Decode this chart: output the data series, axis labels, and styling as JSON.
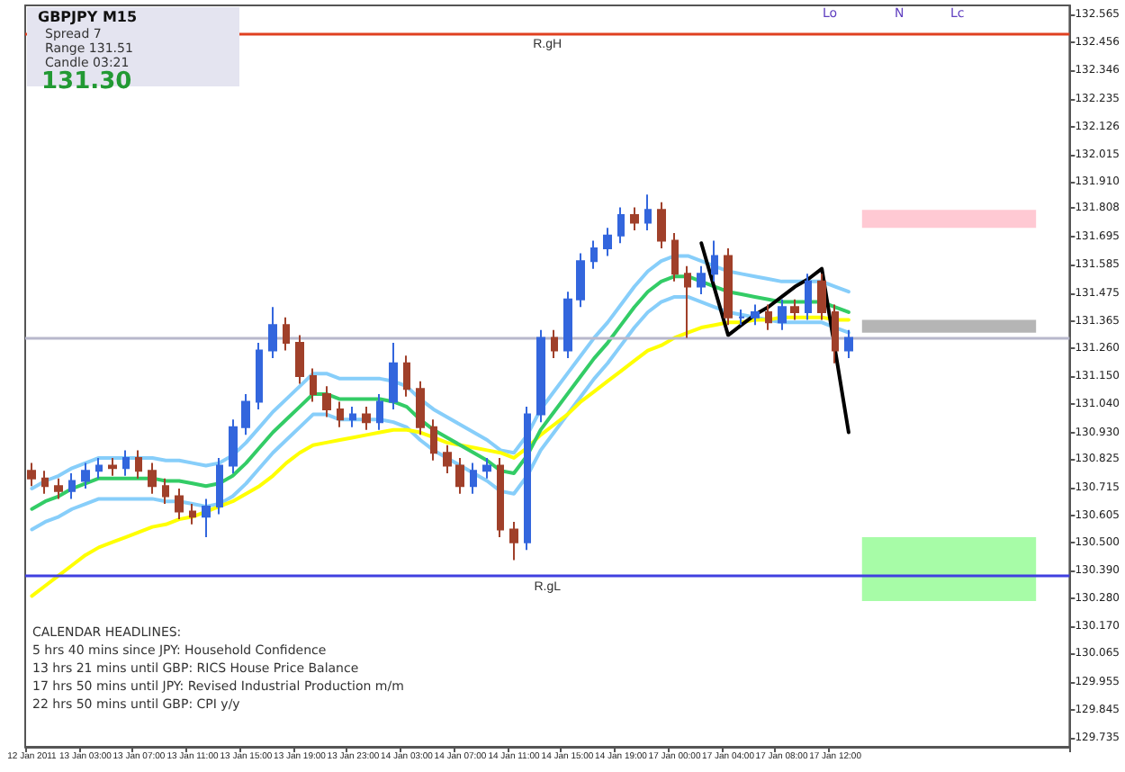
{
  "chart_data": {
    "type": "candlestick",
    "title": "GBPJPY  M15",
    "categories": [
      "12 Jan 2011",
      null,
      null,
      null,
      "13 Jan 03:00",
      null,
      null,
      null,
      "13 Jan 07:00",
      null,
      null,
      null,
      "13 Jan 11:00",
      null,
      null,
      null,
      "13 Jan 15:00",
      null,
      null,
      null,
      "13 Jan 19:00",
      null,
      null,
      null,
      "13 Jan 23:00",
      null,
      null,
      null,
      "14 Jan 03:00",
      null,
      null,
      null,
      "14 Jan 07:00",
      null,
      null,
      null,
      "14 Jan 11:00",
      null,
      null,
      null,
      "14 Jan 15:00",
      null,
      null,
      null,
      "14 Jan 19:00",
      null,
      null,
      null,
      "17 Jan 00:00",
      null,
      null,
      null,
      "17 Jan 04:00",
      null,
      null,
      null,
      "17 Jan 08:00",
      null,
      null,
      null,
      "17 Jan 12:00",
      null,
      null,
      null,
      null,
      null,
      null,
      null,
      null,
      null,
      null,
      null,
      null,
      null,
      null,
      null,
      null,
      null
    ],
    "ohlc": [
      [
        130.78,
        130.81,
        130.72,
        130.75
      ],
      [
        130.75,
        130.78,
        130.69,
        130.72
      ],
      [
        130.72,
        130.75,
        130.67,
        130.7
      ],
      [
        130.7,
        130.77,
        130.67,
        130.74
      ],
      [
        130.74,
        130.81,
        130.71,
        130.78
      ],
      [
        130.78,
        130.83,
        130.75,
        130.8
      ],
      [
        130.8,
        130.83,
        130.76,
        130.79
      ],
      [
        130.79,
        130.86,
        130.76,
        130.83
      ],
      [
        130.83,
        130.86,
        130.75,
        130.78
      ],
      [
        130.78,
        130.81,
        130.69,
        130.72
      ],
      [
        130.72,
        130.75,
        130.65,
        130.68
      ],
      [
        130.68,
        130.71,
        130.59,
        130.62
      ],
      [
        130.62,
        130.65,
        130.57,
        130.6
      ],
      [
        130.6,
        130.67,
        130.52,
        130.64
      ],
      [
        130.64,
        130.83,
        130.61,
        130.8
      ],
      [
        130.8,
        130.98,
        130.77,
        130.95
      ],
      [
        130.95,
        131.08,
        130.92,
        131.05
      ],
      [
        131.05,
        131.28,
        131.02,
        131.25
      ],
      [
        131.25,
        131.42,
        131.22,
        131.35
      ],
      [
        131.35,
        131.38,
        131.25,
        131.28
      ],
      [
        131.28,
        131.31,
        131.12,
        131.15
      ],
      [
        131.15,
        131.18,
        131.05,
        131.08
      ],
      [
        131.08,
        131.11,
        130.99,
        131.02
      ],
      [
        131.02,
        131.05,
        130.95,
        130.98
      ],
      [
        130.98,
        131.03,
        130.95,
        131.0
      ],
      [
        131.0,
        131.03,
        130.94,
        130.97
      ],
      [
        130.97,
        131.08,
        130.94,
        131.05
      ],
      [
        131.05,
        131.28,
        131.02,
        131.2
      ],
      [
        131.2,
        131.23,
        131.07,
        131.1
      ],
      [
        131.1,
        131.13,
        130.92,
        130.95
      ],
      [
        130.95,
        130.98,
        130.82,
        130.85
      ],
      [
        130.85,
        130.88,
        130.77,
        130.8
      ],
      [
        130.8,
        130.83,
        130.69,
        130.72
      ],
      [
        130.72,
        130.81,
        130.69,
        130.78
      ],
      [
        130.78,
        130.83,
        130.75,
        130.8
      ],
      [
        130.8,
        130.83,
        130.52,
        130.55
      ],
      [
        130.55,
        130.58,
        130.43,
        130.5
      ],
      [
        130.5,
        131.03,
        130.47,
        131.0
      ],
      [
        131.0,
        131.33,
        130.97,
        131.3
      ],
      [
        131.3,
        131.33,
        131.22,
        131.25
      ],
      [
        131.25,
        131.48,
        131.22,
        131.45
      ],
      [
        131.45,
        131.63,
        131.42,
        131.6
      ],
      [
        131.6,
        131.68,
        131.57,
        131.65
      ],
      [
        131.65,
        131.73,
        131.62,
        131.7
      ],
      [
        131.7,
        131.81,
        131.67,
        131.78
      ],
      [
        131.78,
        131.81,
        131.72,
        131.75
      ],
      [
        131.75,
        131.86,
        131.72,
        131.8
      ],
      [
        131.8,
        131.83,
        131.65,
        131.68
      ],
      [
        131.68,
        131.71,
        131.52,
        131.55
      ],
      [
        131.55,
        131.58,
        131.3,
        131.5
      ],
      [
        131.5,
        131.58,
        131.47,
        131.55
      ],
      [
        131.55,
        131.68,
        131.52,
        131.62
      ],
      [
        131.62,
        131.65,
        131.35,
        131.38
      ],
      [
        131.38,
        131.41,
        131.35,
        131.38
      ],
      [
        131.38,
        131.43,
        131.35,
        131.4
      ],
      [
        131.4,
        131.43,
        131.33,
        131.36
      ],
      [
        131.36,
        131.45,
        131.33,
        131.42
      ],
      [
        131.42,
        131.45,
        131.37,
        131.4
      ],
      [
        131.4,
        131.55,
        131.37,
        131.52
      ],
      [
        131.52,
        131.55,
        131.37,
        131.4
      ],
      [
        131.4,
        131.43,
        131.2,
        131.25
      ],
      [
        131.25,
        131.33,
        131.22,
        131.3
      ],
      null,
      null,
      null,
      null,
      null,
      null,
      null,
      null,
      null,
      null,
      null,
      null,
      null,
      null,
      null,
      null
    ],
    "series": [
      {
        "type": "line",
        "color": "#87cefa",
        "values": [
          130.71,
          130.74,
          130.76,
          130.79,
          130.81,
          130.83,
          130.83,
          130.83,
          130.83,
          130.83,
          130.82,
          130.82,
          130.81,
          130.8,
          130.81,
          130.84,
          130.89,
          130.95,
          131.01,
          131.06,
          131.11,
          131.16,
          131.16,
          131.14,
          131.14,
          131.14,
          131.14,
          131.13,
          131.11,
          131.06,
          131.02,
          130.99,
          130.96,
          130.93,
          130.9,
          130.86,
          130.85,
          130.92,
          131.02,
          131.09,
          131.16,
          131.23,
          131.3,
          131.36,
          131.43,
          131.5,
          131.56,
          131.6,
          131.62,
          131.62,
          131.6,
          131.58,
          131.56,
          131.55,
          131.54,
          131.53,
          131.52,
          131.52,
          131.52,
          131.52,
          131.5,
          131.48,
          null,
          null,
          null,
          null,
          null,
          null,
          null,
          null,
          null,
          null,
          null,
          null,
          null,
          null,
          null,
          null
        ]
      },
      {
        "type": "line",
        "color": "#87cefa",
        "values": [
          130.55,
          130.58,
          130.6,
          130.63,
          130.65,
          130.67,
          130.67,
          130.67,
          130.67,
          130.67,
          130.66,
          130.66,
          130.65,
          130.64,
          130.65,
          130.68,
          130.73,
          130.79,
          130.85,
          130.9,
          130.95,
          131.0,
          131.0,
          130.98,
          130.98,
          130.98,
          130.98,
          130.97,
          130.95,
          130.9,
          130.86,
          130.83,
          130.8,
          130.77,
          130.74,
          130.7,
          130.69,
          130.76,
          130.86,
          130.93,
          131.0,
          131.07,
          131.14,
          131.2,
          131.27,
          131.34,
          131.4,
          131.44,
          131.46,
          131.46,
          131.44,
          131.42,
          131.4,
          131.39,
          131.38,
          131.37,
          131.36,
          131.36,
          131.36,
          131.36,
          131.34,
          131.32,
          null,
          null,
          null,
          null,
          null,
          null,
          null,
          null,
          null,
          null,
          null,
          null,
          null,
          null,
          null,
          null
        ]
      },
      {
        "type": "line",
        "color": "#ffff00",
        "values": [
          130.29,
          130.33,
          130.37,
          130.41,
          130.45,
          130.48,
          130.5,
          130.52,
          130.54,
          130.56,
          130.57,
          130.59,
          130.6,
          130.62,
          130.64,
          130.66,
          130.69,
          130.72,
          130.76,
          130.81,
          130.85,
          130.88,
          130.89,
          130.9,
          130.91,
          130.92,
          130.93,
          130.94,
          130.94,
          130.93,
          130.91,
          130.89,
          130.88,
          130.87,
          130.86,
          130.85,
          130.83,
          130.87,
          130.92,
          130.96,
          131.0,
          131.05,
          131.09,
          131.13,
          131.17,
          131.21,
          131.25,
          131.27,
          131.3,
          131.32,
          131.34,
          131.35,
          131.36,
          131.36,
          131.37,
          131.37,
          131.38,
          131.38,
          131.38,
          131.38,
          131.37,
          131.37,
          null,
          null,
          null,
          null,
          null,
          null,
          null,
          null,
          null,
          null,
          null,
          null,
          null,
          null,
          null,
          null
        ]
      },
      {
        "type": "line",
        "color": "#33cc66",
        "values": [
          130.63,
          130.66,
          130.68,
          130.71,
          130.73,
          130.75,
          130.75,
          130.75,
          130.75,
          130.75,
          130.74,
          130.74,
          130.73,
          130.72,
          130.73,
          130.76,
          130.81,
          130.87,
          130.93,
          130.98,
          131.03,
          131.08,
          131.08,
          131.06,
          131.06,
          131.06,
          131.06,
          131.05,
          131.03,
          130.98,
          130.94,
          130.91,
          130.88,
          130.85,
          130.82,
          130.78,
          130.77,
          130.84,
          130.94,
          131.01,
          131.08,
          131.15,
          131.22,
          131.28,
          131.35,
          131.42,
          131.48,
          131.52,
          131.54,
          131.54,
          131.52,
          131.5,
          131.48,
          131.47,
          131.46,
          131.45,
          131.44,
          131.44,
          131.44,
          131.44,
          131.42,
          131.4,
          null,
          null,
          null,
          null,
          null,
          null,
          null,
          null,
          null,
          null,
          null,
          null,
          null,
          null,
          null,
          null
        ]
      },
      {
        "type": "line",
        "color": "#000000",
        "values": [
          null,
          null,
          null,
          null,
          null,
          null,
          null,
          null,
          null,
          null,
          null,
          null,
          null,
          null,
          null,
          null,
          null,
          null,
          null,
          null,
          null,
          null,
          null,
          null,
          null,
          null,
          null,
          null,
          null,
          null,
          null,
          null,
          null,
          null,
          null,
          null,
          null,
          null,
          null,
          null,
          null,
          null,
          null,
          null,
          null,
          null,
          null,
          null,
          null,
          null,
          131.67,
          131.49,
          131.31,
          131.35,
          131.39,
          131.42,
          131.46,
          131.5,
          131.53,
          131.57,
          131.25,
          130.93,
          null,
          null,
          null,
          null,
          null,
          null,
          null,
          null,
          null,
          null,
          null,
          null,
          null,
          null,
          null,
          null
        ]
      }
    ],
    "ylim": [
      129.7,
      132.6
    ],
    "yticks": [
      132.565,
      132.456,
      132.346,
      132.235,
      132.126,
      132.015,
      {
        "value": 131.91,
        "label": "131.910"
      },
      131.808,
      131.695,
      131.585,
      131.475,
      131.365,
      {
        "value": 131.26,
        "label": "131.260"
      },
      {
        "value": 131.15,
        "label": "131.150"
      },
      {
        "value": 131.04,
        "label": "131.040"
      },
      {
        "value": 130.93,
        "label": "130.930"
      },
      130.825,
      130.715,
      130.605,
      {
        "value": 130.5,
        "label": "130.500"
      },
      {
        "value": 130.39,
        "label": "130.390"
      },
      {
        "value": 130.28,
        "label": "130.280"
      },
      {
        "value": 130.17,
        "label": "130.170"
      },
      130.065,
      129.955,
      129.845,
      129.735
    ],
    "ref_lines": [
      {
        "axis": "y",
        "value": 132.49,
        "label": "R.gH",
        "color": "#e04020"
      },
      {
        "axis": "y",
        "value": 130.37,
        "label": "R.gL",
        "color": "#4040e0"
      },
      {
        "axis": "y",
        "value": 131.3,
        "label": null,
        "color": "#b8b8cc"
      }
    ],
    "bands": [
      {
        "axis": "y",
        "from": 131.73,
        "to": 131.8,
        "label": null,
        "color": "#ffc0cb"
      },
      {
        "axis": "y",
        "from": 130.27,
        "to": 130.52,
        "label": null,
        "color": "#98fb98"
      },
      {
        "axis": "y",
        "from": 131.32,
        "to": 131.37,
        "label": null,
        "color": "#a8a8a8"
      }
    ],
    "annotations": [
      "Spread  7",
      "Range  131.51",
      "Candle  03:21",
      "131.30",
      "CALENDAR HEADLINES:",
      "5 hrs 40 mins since JPY: Household Confidence",
      "13 hrs 21 mins until GBP: RICS House Price Balance",
      "17 hrs 50 mins until JPY: Revised Industrial Production m/m",
      "22 hrs 50 mins until GBP: CPI y/y",
      "Lo",
      "N",
      "Lc"
    ],
    "grid": false,
    "line_style": "solid",
    "marker": "none"
  }
}
